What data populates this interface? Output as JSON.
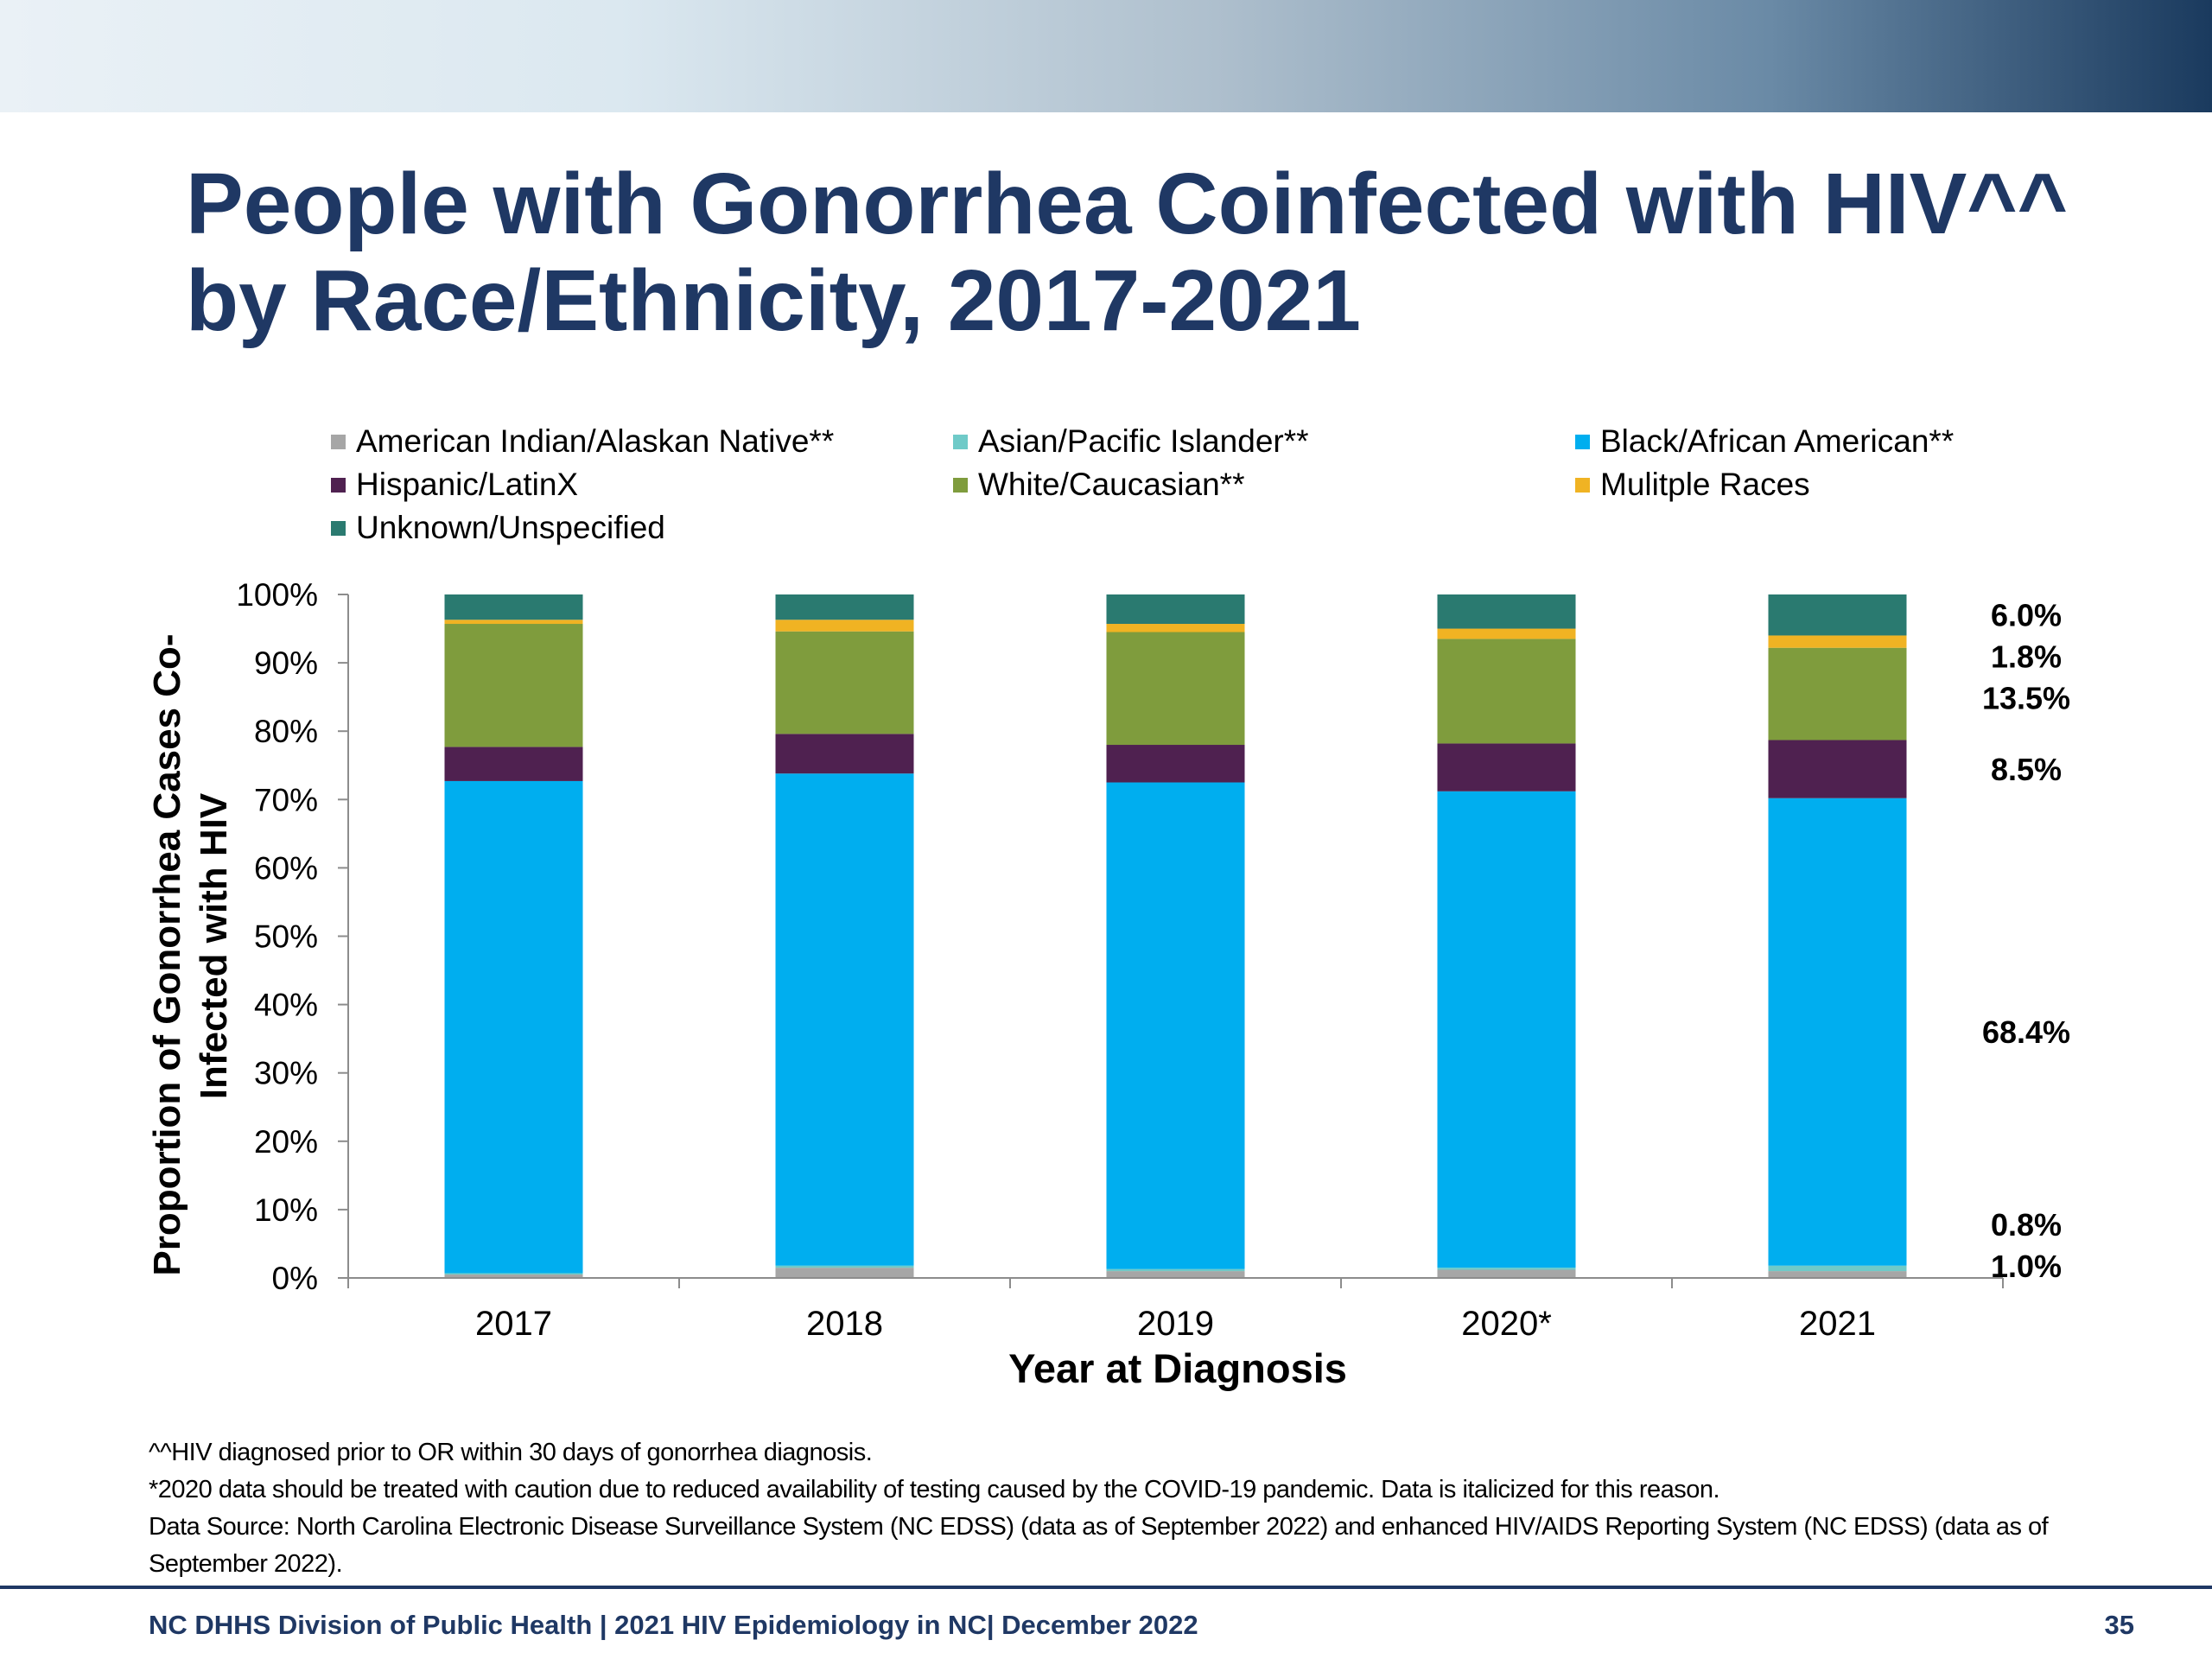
{
  "slide": {
    "title_line1": "People with Gonorrhea Coinfected with HIV^^",
    "title_line2": "by Race/Ethnicity, 2017-2021",
    "footnotes": [
      "^^HIV diagnosed prior to OR within 30 days of gonorrhea diagnosis.",
      "*2020 data should be treated with caution due to reduced availability of testing caused by the COVID-19 pandemic. Data is italicized for this reason.",
      "Data Source: North Carolina Electronic Disease Surveillance System (NC EDSS) (data as of September 2022) and enhanced HIV/AIDS Reporting System (NC EDSS) (data as of September 2022)."
    ],
    "footer_left": "NC DHHS Division of Public Health | 2021 HIV Epidemiology in NC| December 2022",
    "page_number": "35"
  },
  "chart_data": {
    "type": "bar",
    "stacked": true,
    "title": "",
    "xlabel": "Year at Diagnosis",
    "ylabel_line1": "Proportion  of Gonorrhea Cases Co-",
    "ylabel_line2": "Infected with HIV",
    "ylim": [
      0,
      100
    ],
    "y_ticks": [
      "0%",
      "10%",
      "20%",
      "30%",
      "40%",
      "50%",
      "60%",
      "70%",
      "80%",
      "90%",
      "100%"
    ],
    "categories": [
      "2017",
      "2018",
      "2019",
      "2020*",
      "2021"
    ],
    "legend_position": "top",
    "series": [
      {
        "name": "American Indian/Alaskan Native**",
        "color": "#a6a6a6",
        "values": [
          0.5,
          1.5,
          1.0,
          1.2,
          1.0
        ]
      },
      {
        "name": "Asian/Pacific Islander**",
        "color": "#6fcac8",
        "values": [
          0.2,
          0.3,
          0.3,
          0.3,
          0.8
        ]
      },
      {
        "name": "Black/African American**",
        "color": "#00aeef",
        "values": [
          72.0,
          72.0,
          71.2,
          69.7,
          68.4
        ]
      },
      {
        "name": "Hispanic/LatinX",
        "color": "#4f2150",
        "values": [
          5.0,
          5.8,
          5.5,
          7.0,
          8.5
        ]
      },
      {
        "name": "White/Caucasian**",
        "color": "#7f9c3d",
        "values": [
          18.0,
          15.0,
          16.5,
          15.3,
          13.5
        ]
      },
      {
        "name": "Mulitple Races",
        "color": "#f0b323",
        "values": [
          0.6,
          1.7,
          1.2,
          1.5,
          1.8
        ]
      },
      {
        "name": "Unknown/Unspecified",
        "color": "#2a7a70",
        "values": [
          3.7,
          3.7,
          4.3,
          5.0,
          6.0
        ]
      }
    ],
    "data_labels_2021": [
      "6.0%",
      "1.8%",
      "13.5%",
      "8.5%",
      "68.4%",
      "0.8%",
      "1.0%"
    ]
  }
}
